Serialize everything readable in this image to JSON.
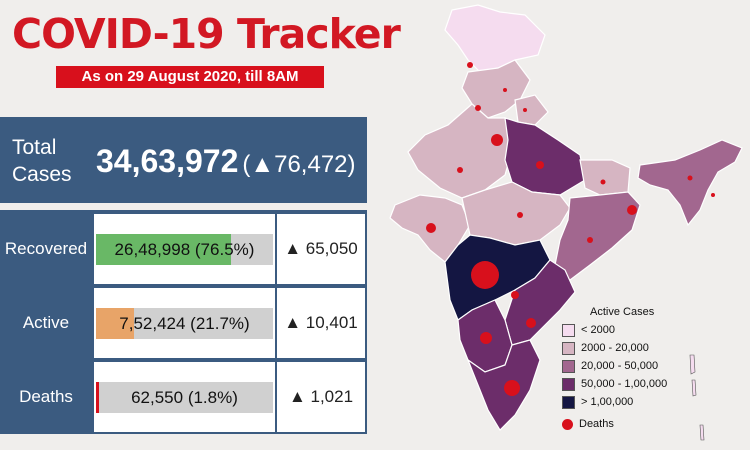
{
  "header": {
    "title": "COVID-19 Tracker",
    "subtitle": "As on 29 August 2020, till 8AM"
  },
  "total": {
    "label": "Total Cases",
    "value": "34,63,972",
    "delta": "(▲76,472)"
  },
  "rows": [
    {
      "label": "Recovered",
      "value_text": "26,48,998 (76.5%)",
      "share": 0.765,
      "color": "#69b866",
      "delta": "▲ 65,050"
    },
    {
      "label": "Active",
      "value_text": "7,52,424 (21.7%)",
      "share": 0.217,
      "color": "#e8a468",
      "delta": "▲ 10,401"
    },
    {
      "label": "Deaths",
      "value_text": "62,550 (1.8%)",
      "share": 0.018,
      "color": "#d8101c",
      "delta": "▲ 1,021"
    }
  ],
  "legend": {
    "title": "Active Cases",
    "items": [
      {
        "label": "< 2000",
        "color": "#f5dcef"
      },
      {
        "label": "2000 - 20,000",
        "color": "#d6b5c2"
      },
      {
        "label": "20,000 - 50,000",
        "color": "#a2678f"
      },
      {
        "label": "50,000 - 1,00,000",
        "color": "#6c2d6a"
      },
      {
        "label": "> 1,00,000",
        "color": "#141642"
      }
    ],
    "deaths_label": "Deaths",
    "deaths_color": "#d8101c"
  }
}
